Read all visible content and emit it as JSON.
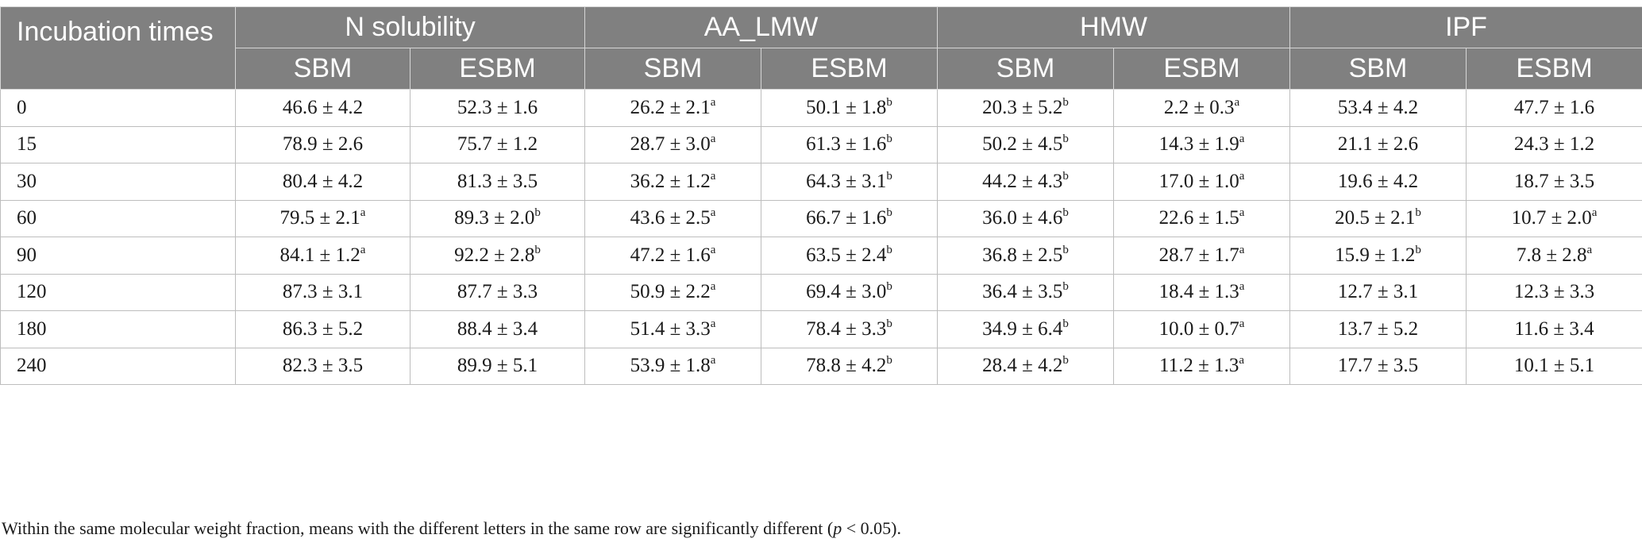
{
  "table": {
    "corner_header": "Incubation times",
    "groups": [
      {
        "name": "N solubility",
        "subs": [
          "SBM",
          "ESBM"
        ]
      },
      {
        "name": "AA_LMW",
        "subs": [
          "SBM",
          "ESBM"
        ]
      },
      {
        "name": "HMW",
        "subs": [
          "SBM",
          "ESBM"
        ]
      },
      {
        "name": "IPF",
        "subs": [
          "SBM",
          "ESBM"
        ]
      }
    ],
    "rows": [
      {
        "time": "0",
        "cells": [
          [
            "46.6 ± 4.2",
            ""
          ],
          [
            "52.3 ± 1.6",
            ""
          ],
          [
            "26.2 ± 2.1",
            "a"
          ],
          [
            "50.1 ± 1.8",
            "b"
          ],
          [
            "20.3 ± 5.2",
            "b"
          ],
          [
            "2.2 ± 0.3",
            "a"
          ],
          [
            "53.4 ± 4.2",
            ""
          ],
          [
            "47.7 ± 1.6",
            ""
          ]
        ]
      },
      {
        "time": "15",
        "cells": [
          [
            "78.9 ± 2.6",
            ""
          ],
          [
            "75.7 ± 1.2",
            ""
          ],
          [
            "28.7 ± 3.0",
            "a"
          ],
          [
            "61.3 ± 1.6",
            "b"
          ],
          [
            "50.2 ± 4.5",
            "b"
          ],
          [
            "14.3 ± 1.9",
            "a"
          ],
          [
            "21.1 ± 2.6",
            ""
          ],
          [
            "24.3 ± 1.2",
            ""
          ]
        ]
      },
      {
        "time": "30",
        "cells": [
          [
            "80.4 ± 4.2",
            ""
          ],
          [
            "81.3 ± 3.5",
            ""
          ],
          [
            "36.2 ± 1.2",
            "a"
          ],
          [
            "64.3 ± 3.1",
            "b"
          ],
          [
            "44.2 ± 4.3",
            "b"
          ],
          [
            "17.0 ± 1.0",
            "a"
          ],
          [
            "19.6 ± 4.2",
            ""
          ],
          [
            "18.7 ± 3.5",
            ""
          ]
        ]
      },
      {
        "time": "60",
        "cells": [
          [
            "79.5 ± 2.1",
            "a"
          ],
          [
            "89.3 ± 2.0",
            "b"
          ],
          [
            "43.6 ± 2.5",
            "a"
          ],
          [
            "66.7 ± 1.6",
            "b"
          ],
          [
            "36.0 ± 4.6",
            "b"
          ],
          [
            "22.6 ± 1.5",
            "a"
          ],
          [
            "20.5 ± 2.1",
            "b"
          ],
          [
            "10.7 ± 2.0",
            "a"
          ]
        ]
      },
      {
        "time": "90",
        "cells": [
          [
            "84.1 ± 1.2",
            "a"
          ],
          [
            "92.2 ± 2.8",
            "b"
          ],
          [
            "47.2 ± 1.6",
            "a"
          ],
          [
            "63.5 ± 2.4",
            "b"
          ],
          [
            "36.8 ± 2.5",
            "b"
          ],
          [
            "28.7 ± 1.7",
            "a"
          ],
          [
            "15.9 ± 1.2",
            "b"
          ],
          [
            "7.8 ± 2.8",
            "a"
          ]
        ]
      },
      {
        "time": "120",
        "cells": [
          [
            "87.3 ± 3.1",
            ""
          ],
          [
            "87.7 ± 3.3",
            ""
          ],
          [
            "50.9 ± 2.2",
            "a"
          ],
          [
            "69.4 ± 3.0",
            "b"
          ],
          [
            "36.4 ± 3.5",
            "b"
          ],
          [
            "18.4 ± 1.3",
            "a"
          ],
          [
            "12.7 ± 3.1",
            ""
          ],
          [
            "12.3 ± 3.3",
            ""
          ]
        ]
      },
      {
        "time": "180",
        "cells": [
          [
            "86.3 ± 5.2",
            ""
          ],
          [
            "88.4 ± 3.4",
            ""
          ],
          [
            "51.4 ± 3.3",
            "a"
          ],
          [
            "78.4 ± 3.3",
            "b"
          ],
          [
            "34.9 ± 6.4",
            "b"
          ],
          [
            "10.0 ± 0.7",
            "a"
          ],
          [
            "13.7 ± 5.2",
            ""
          ],
          [
            "11.6 ± 3.4",
            ""
          ]
        ]
      },
      {
        "time": "240",
        "cells": [
          [
            "82.3 ± 3.5",
            ""
          ],
          [
            "89.9 ± 5.1",
            ""
          ],
          [
            "53.9 ± 1.8",
            "a"
          ],
          [
            "78.8 ± 4.2",
            "b"
          ],
          [
            "28.4 ± 4.2",
            "b"
          ],
          [
            "11.2 ± 1.3",
            "a"
          ],
          [
            "17.7 ± 3.5",
            ""
          ],
          [
            "10.1 ± 5.1",
            ""
          ]
        ]
      }
    ]
  },
  "footnote": {
    "before": "Within the same molecular weight fraction, means with the different letters in the same row are significantly different (",
    "italic": "p",
    "after": " < 0.05)."
  }
}
